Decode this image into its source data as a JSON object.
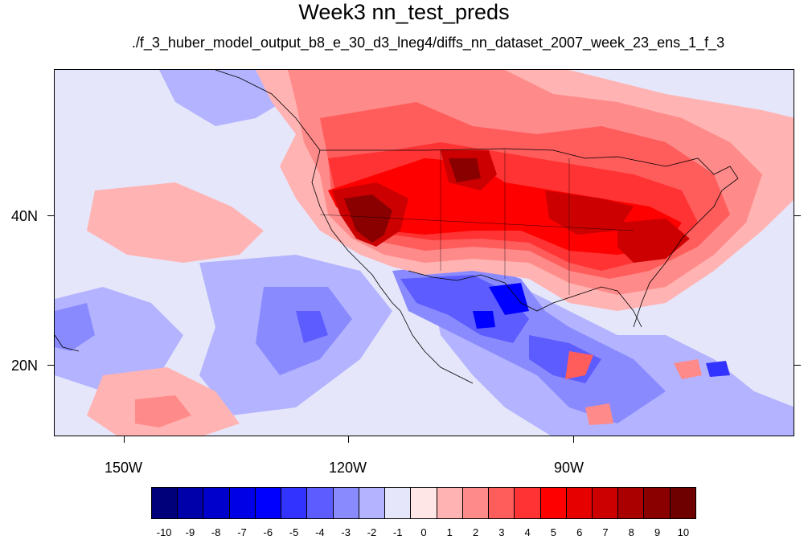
{
  "title": "Week3 nn_test_preds",
  "subtitle": "./f_3_huber_model_output_b8_e_30_d3_lneg4/diffs_nn_dataset_2007_week_23_ens_1_f_3",
  "map": {
    "lon_range": [
      -161,
      -62
    ],
    "lat_range": [
      11,
      60
    ],
    "x_ticks": [
      "150W",
      "120W",
      "90W"
    ],
    "y_ticks": [
      "40N",
      "20N"
    ],
    "background_color": "#e6e6fa",
    "coastline_color": "#000000"
  },
  "colorbar": {
    "colors": [
      "#00007a",
      "#0000aa",
      "#0000cc",
      "#0000e6",
      "#0000ff",
      "#3333ff",
      "#5c5cff",
      "#8a8aff",
      "#b3b3ff",
      "#e6e6fa",
      "#ffe6e6",
      "#ffb3b3",
      "#ff8a8a",
      "#ff5c5c",
      "#ff3333",
      "#ff0000",
      "#e60000",
      "#cc0000",
      "#aa0000",
      "#8a0000",
      "#6e0000"
    ],
    "labels": [
      "-10",
      "-9",
      "-8",
      "-7",
      "-6",
      "-5",
      "-4",
      "-3",
      "-2",
      "-1",
      "0",
      "1",
      "2",
      "3",
      "4",
      "5",
      "6",
      "7",
      "8",
      "9",
      "10"
    ]
  }
}
